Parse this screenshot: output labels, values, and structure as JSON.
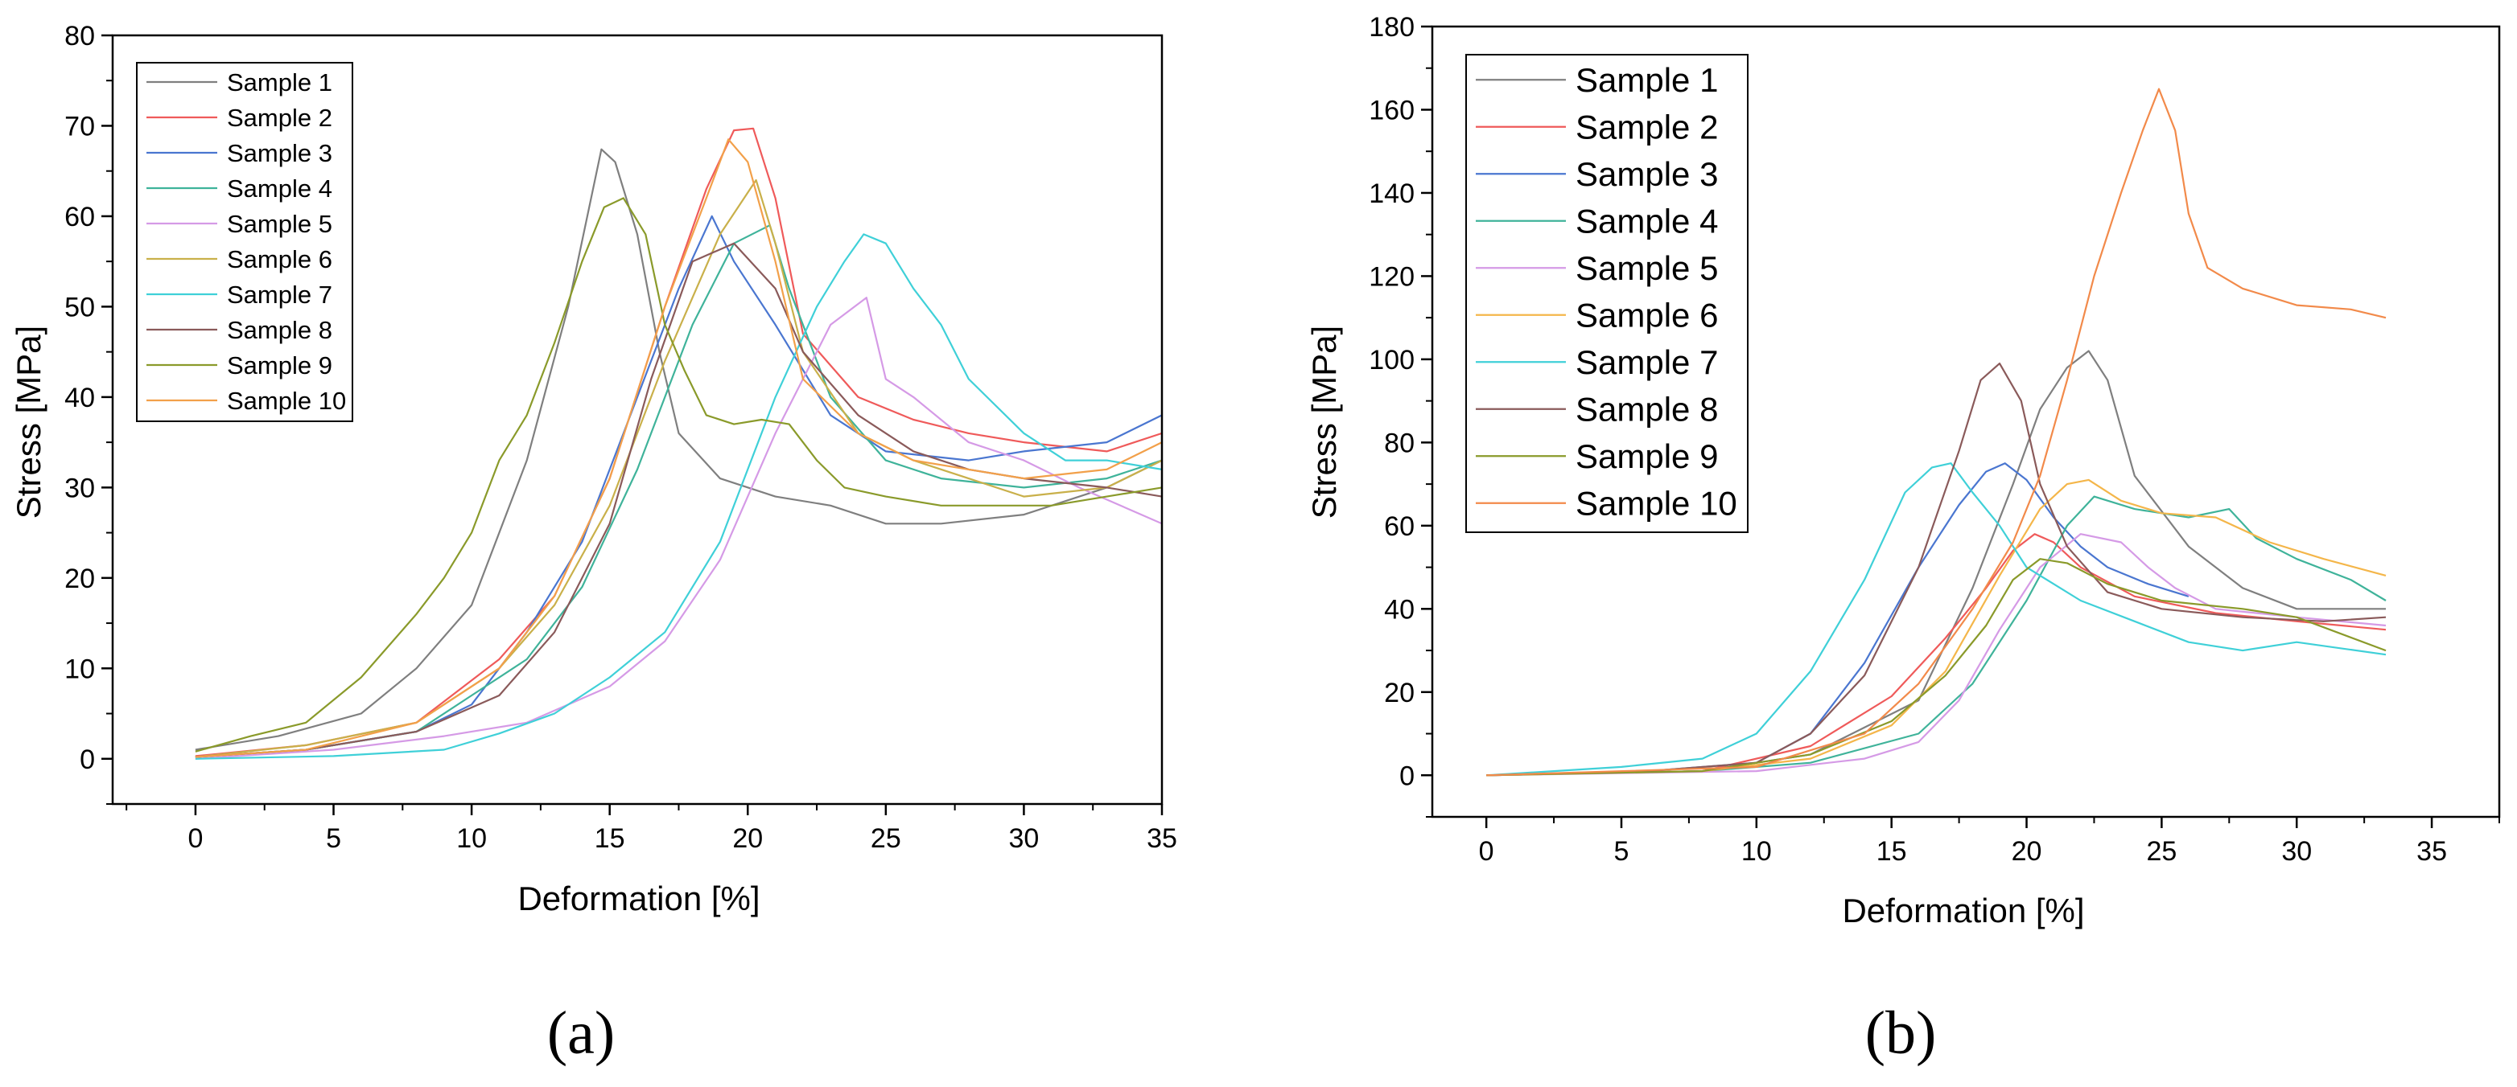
{
  "chart_data": [
    {
      "type": "line",
      "panel_label": "(a)",
      "xlabel": "Deformation [%]",
      "ylabel": "Stress [MPa]",
      "xlim": [
        -3,
        35
      ],
      "ylim": [
        -5,
        80
      ],
      "xticks": [
        0,
        5,
        10,
        15,
        20,
        25,
        30,
        35
      ],
      "yticks": [
        0,
        10,
        20,
        30,
        40,
        50,
        60,
        70,
        80
      ],
      "legend_position": "top-left",
      "series": [
        {
          "name": "Sample 1",
          "color": "#7f7f7f",
          "x": [
            0,
            3,
            6,
            8,
            10,
            12,
            13.5,
            14.7,
            15.2,
            16,
            16.8,
            17.5,
            19,
            21,
            23,
            25,
            27,
            30,
            33,
            35
          ],
          "y": [
            1,
            2.5,
            5,
            10,
            17,
            33,
            50,
            67.4,
            66,
            58,
            45,
            36,
            31,
            29,
            28,
            26,
            26,
            27,
            30,
            33
          ]
        },
        {
          "name": "Sample 2",
          "color": "#ef5a5a",
          "x": [
            0,
            4,
            8,
            11,
            13,
            15,
            17,
            18.5,
            19.5,
            20.2,
            21,
            22,
            24,
            26,
            28,
            30,
            33,
            35
          ],
          "y": [
            0.3,
            1.5,
            4,
            11,
            18,
            31,
            50,
            63,
            69.5,
            69.7,
            62,
            47,
            40,
            37.5,
            36,
            35,
            34,
            36
          ]
        },
        {
          "name": "Sample 3",
          "color": "#4a76d0",
          "x": [
            0,
            4,
            8,
            10,
            12,
            14,
            16,
            17.5,
            18.7,
            19.5,
            21,
            23,
            25,
            28,
            30,
            33,
            35
          ],
          "y": [
            0.2,
            1,
            3,
            6,
            14,
            24,
            40,
            52,
            60,
            55,
            48,
            38,
            34,
            33,
            34,
            35,
            38
          ]
        },
        {
          "name": "Sample 4",
          "color": "#3fb39a",
          "x": [
            0,
            4,
            8,
            10,
            12,
            14,
            16,
            18,
            19.5,
            20.8,
            21.5,
            23,
            25,
            27,
            30,
            33,
            35
          ],
          "y": [
            0.2,
            1,
            3,
            7,
            11,
            19,
            32,
            48,
            57,
            59,
            52,
            40,
            33,
            31,
            30,
            31,
            33
          ]
        },
        {
          "name": "Sample 5",
          "color": "#d59ae6",
          "x": [
            0,
            5,
            9,
            12,
            15,
            17,
            19,
            21,
            23,
            24.3,
            25,
            26,
            28,
            30,
            32,
            35
          ],
          "y": [
            0,
            1,
            2.5,
            4,
            8,
            13,
            22,
            36,
            48,
            51,
            42,
            40,
            35,
            33,
            30,
            26
          ]
        },
        {
          "name": "Sample 6",
          "color": "#c9b04a",
          "x": [
            0,
            4,
            8,
            11,
            13,
            15,
            17,
            19,
            20.3,
            21,
            22,
            24,
            26,
            28,
            30,
            33,
            35
          ],
          "y": [
            0.2,
            1.5,
            4,
            10,
            17,
            28,
            44,
            58,
            64,
            57,
            45,
            36,
            33,
            31,
            29,
            30,
            33
          ]
        },
        {
          "name": "Sample 7",
          "color": "#3fd0d8",
          "x": [
            0,
            5,
            9,
            11,
            13,
            15,
            17,
            19,
            21,
            22.5,
            23.5,
            24.2,
            25,
            26,
            27,
            28,
            30,
            31.5,
            33,
            35
          ],
          "y": [
            0,
            0.3,
            1,
            2.8,
            5,
            9,
            14,
            24,
            40,
            50,
            55,
            58,
            57,
            52,
            48,
            42,
            36,
            33,
            33,
            32
          ]
        },
        {
          "name": "Sample 8",
          "color": "#8a5a5a",
          "x": [
            0,
            4,
            8,
            11,
            13,
            15,
            16.5,
            18,
            19.5,
            21,
            22,
            24,
            26,
            28,
            30,
            33,
            35
          ],
          "y": [
            0.2,
            1,
            3,
            7,
            14,
            26,
            42,
            55,
            57,
            52,
            45,
            38,
            34,
            32,
            31,
            30,
            29
          ]
        },
        {
          "name": "Sample 9",
          "color": "#8a9a2a",
          "x": [
            0,
            2,
            4,
            6,
            8,
            9,
            10,
            11,
            12,
            13,
            14,
            14.8,
            15.5,
            16.3,
            17,
            17.7,
            18.5,
            19.5,
            20.5,
            21.5,
            22.5,
            23.5,
            25,
            27,
            29,
            31,
            33,
            35
          ],
          "y": [
            0.8,
            2.5,
            4,
            9,
            16,
            20,
            25,
            33,
            38,
            46,
            55,
            61,
            62,
            58,
            48,
            43,
            38,
            37,
            37.5,
            37,
            33,
            30,
            29,
            28,
            28,
            28,
            29,
            30
          ]
        },
        {
          "name": "Sample 10",
          "color": "#f2a04a",
          "x": [
            0,
            4,
            8,
            11,
            13,
            15,
            17,
            18.5,
            19.3,
            20,
            21,
            22,
            24,
            26,
            28,
            30,
            33,
            35
          ],
          "y": [
            0.2,
            1,
            4,
            10,
            18,
            31,
            50,
            62,
            68.5,
            66,
            55,
            42,
            36,
            33,
            32,
            31,
            32,
            35
          ]
        }
      ]
    },
    {
      "type": "line",
      "panel_label": "(b)",
      "xlabel": "Deformation [%]",
      "ylabel": "Stress [MPa]",
      "xlim": [
        -2,
        37.5
      ],
      "ylim": [
        -10,
        180
      ],
      "xticks": [
        0,
        5,
        10,
        15,
        20,
        25,
        30,
        35
      ],
      "yticks": [
        0,
        20,
        40,
        60,
        80,
        100,
        120,
        140,
        160,
        180
      ],
      "legend_position": "top-left",
      "series": [
        {
          "name": "Sample 1",
          "color": "#7f7f7f",
          "x": [
            0,
            8,
            12,
            16,
            18,
            19.5,
            20.5,
            21.5,
            22.3,
            23,
            24,
            26,
            28,
            30,
            33.3
          ],
          "y": [
            0,
            1,
            5,
            18,
            45,
            70,
            88,
            98,
            102,
            95,
            72,
            55,
            45,
            40,
            40
          ]
        },
        {
          "name": "Sample 2",
          "color": "#ef5a5a",
          "x": [
            0,
            8,
            12,
            15,
            17,
            18.5,
            19.5,
            20.3,
            21,
            22,
            24,
            27,
            30,
            33.3
          ],
          "y": [
            0,
            1,
            7,
            19,
            33,
            45,
            54,
            58,
            56,
            50,
            43,
            39,
            37,
            35
          ]
        },
        {
          "name": "Sample 3",
          "color": "#4a76d0",
          "x": [
            0,
            6,
            10,
            12,
            14,
            16,
            17.5,
            18.5,
            19.2,
            20,
            21,
            22,
            23,
            24.5,
            26
          ],
          "y": [
            0,
            1,
            3,
            10,
            27,
            50,
            65,
            73,
            75,
            71,
            62,
            55,
            50,
            46,
            43
          ]
        },
        {
          "name": "Sample 4",
          "color": "#3fb39a",
          "x": [
            0,
            8,
            12,
            16,
            18,
            20,
            21.5,
            22.5,
            24,
            26,
            27.5,
            28.5,
            30,
            32,
            33.3
          ],
          "y": [
            0,
            1,
            3,
            10,
            22,
            42,
            60,
            67,
            64,
            62,
            64,
            57,
            52,
            47,
            42
          ]
        },
        {
          "name": "Sample 5",
          "color": "#d59ae6",
          "x": [
            0,
            10,
            14,
            16,
            17.5,
            19,
            20.5,
            22,
            23.5,
            24.5,
            25.5,
            27,
            30,
            33.3
          ],
          "y": [
            0,
            1,
            4,
            8,
            18,
            35,
            50,
            58,
            56,
            50,
            45,
            40,
            38,
            36
          ]
        },
        {
          "name": "Sample 6",
          "color": "#f4b64a",
          "x": [
            0,
            8,
            12,
            15,
            17,
            19,
            20.5,
            21.5,
            22.3,
            23.5,
            25,
            27,
            29,
            31,
            33.3
          ],
          "y": [
            0,
            1,
            4,
            12,
            25,
            48,
            64,
            70,
            71,
            66,
            63,
            62,
            56,
            52,
            48
          ]
        },
        {
          "name": "Sample 7",
          "color": "#3fd0d8",
          "x": [
            0,
            5,
            8,
            10,
            12,
            14,
            15.5,
            16.5,
            17.2,
            18,
            19,
            20,
            22,
            24,
            26,
            28,
            30,
            33.3
          ],
          "y": [
            0,
            2,
            4,
            10,
            25,
            47,
            68,
            74,
            75,
            68,
            60,
            50,
            42,
            37,
            32,
            30,
            32,
            29
          ]
        },
        {
          "name": "Sample 8",
          "color": "#8a5a5a",
          "x": [
            0,
            6,
            10,
            12,
            14,
            16,
            17.5,
            18.3,
            19,
            19.8,
            20.5,
            21.5,
            23,
            25,
            28,
            31,
            33.3
          ],
          "y": [
            0,
            1,
            3,
            10,
            24,
            50,
            78,
            95,
            99,
            90,
            70,
            55,
            44,
            40,
            38,
            37,
            38
          ]
        },
        {
          "name": "Sample 9",
          "color": "#8a9a2a",
          "x": [
            0,
            8,
            12,
            15,
            17,
            18.5,
            19.5,
            20.5,
            21.5,
            23,
            25,
            28,
            30,
            33.3
          ],
          "y": [
            0,
            1,
            5,
            13,
            24,
            36,
            47,
            52,
            51,
            46,
            42,
            40,
            38,
            30
          ]
        },
        {
          "name": "Sample 10",
          "color": "#f28a4a",
          "x": [
            0,
            10,
            14,
            16,
            18,
            19.5,
            20.5,
            21.5,
            22.5,
            23.5,
            24.3,
            24.9,
            25.5,
            26,
            26.7,
            28,
            30,
            32,
            33.3
          ],
          "y": [
            0,
            2,
            10,
            22,
            40,
            56,
            72,
            95,
            120,
            140,
            155,
            165,
            155,
            135,
            122,
            117,
            113,
            112,
            110
          ]
        }
      ]
    }
  ]
}
